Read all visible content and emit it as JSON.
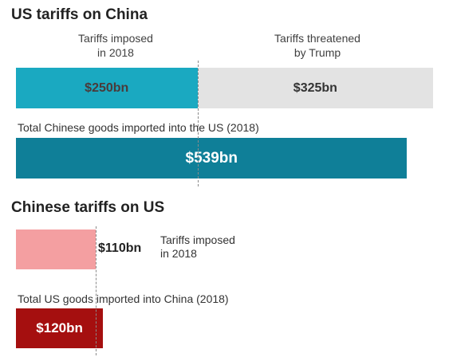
{
  "chart_data": [
    {
      "type": "bar",
      "title": "US tariffs on China",
      "unit": "$bn",
      "segments": [
        {
          "label": "Tariffs imposed in 2018",
          "value": 250,
          "display": "$250bn",
          "color": "#1aa9c1",
          "text_color": "#4a3a3a"
        },
        {
          "label": "Tariffs threatened by Trump",
          "value": 325,
          "display": "$325bn",
          "color": "#e3e3e3",
          "text_color": "#333333"
        }
      ],
      "total": {
        "label": "Total Chinese goods imported into the US (2018)",
        "value": 539,
        "display": "$539bn",
        "color": "#0f7f98"
      }
    },
    {
      "type": "bar",
      "title": "Chinese tariffs on US",
      "unit": "$bn",
      "segments": [
        {
          "label": "Tariffs imposed in 2018",
          "value": 110,
          "display": "$110bn",
          "color": "#f49fa1"
        }
      ],
      "total": {
        "label": "Total US goods imported into China (2018)",
        "value": 120,
        "display": "$120bn",
        "color": "#a50f0f"
      }
    }
  ],
  "labels": {
    "us_imposed_line1": "Tariffs imposed",
    "us_imposed_line2": "in 2018",
    "us_threat_line1": "Tariffs threatened",
    "us_threat_line2": "by Trump",
    "cn_imposed_line1": "Tariffs imposed",
    "cn_imposed_line2": "in 2018"
  }
}
